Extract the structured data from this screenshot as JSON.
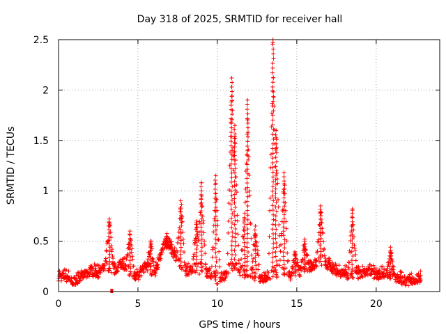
{
  "chart_data": {
    "type": "scatter",
    "title": "Day 318 of 2025, SRMTID for receiver hall",
    "xlabel": "GPS time / hours",
    "ylabel": "SRMTID / TECUs",
    "xlim": [
      0,
      24
    ],
    "ylim": [
      0,
      2.5
    ],
    "x_ticks": [
      0,
      5,
      10,
      15,
      20
    ],
    "x_tick_labels": [
      "0",
      "5",
      "10",
      "15",
      "20"
    ],
    "y_ticks": [
      0,
      0.5,
      1,
      1.5,
      2,
      2.5
    ],
    "y_tick_labels": [
      "0",
      "0.5",
      "1",
      "1.5",
      "2",
      "2.5"
    ],
    "grid": true,
    "marker": "+",
    "color": "#ff0000",
    "series": [
      {
        "name": "SRMTID",
        "baseline": [
          [
            0,
            0.15
          ],
          [
            0.5,
            0.14
          ],
          [
            1,
            0.1
          ],
          [
            1.5,
            0.14
          ],
          [
            2,
            0.2
          ],
          [
            2.5,
            0.18
          ],
          [
            3,
            0.25
          ],
          [
            3.5,
            0.2
          ],
          [
            4,
            0.28
          ],
          [
            4.5,
            0.16
          ],
          [
            5,
            0.15
          ],
          [
            5.5,
            0.25
          ],
          [
            6,
            0.14
          ],
          [
            6.5,
            0.4
          ],
          [
            7,
            0.45
          ],
          [
            7.5,
            0.3
          ],
          [
            8,
            0.2
          ],
          [
            8.5,
            0.22
          ],
          [
            9,
            0.2
          ],
          [
            9.5,
            0.18
          ],
          [
            10,
            0.1
          ],
          [
            10.5,
            0.16
          ],
          [
            11,
            0.25
          ],
          [
            11.5,
            0.18
          ],
          [
            12,
            0.16
          ],
          [
            12.5,
            0.14
          ],
          [
            13,
            0.12
          ],
          [
            13.5,
            0.15
          ],
          [
            14,
            0.2
          ],
          [
            14.5,
            0.16
          ],
          [
            15,
            0.16
          ],
          [
            15.5,
            0.22
          ],
          [
            16,
            0.25
          ],
          [
            16.5,
            0.3
          ],
          [
            17,
            0.25
          ],
          [
            17.5,
            0.2
          ],
          [
            18,
            0.18
          ],
          [
            18.5,
            0.14
          ],
          [
            19,
            0.18
          ],
          [
            19.5,
            0.2
          ],
          [
            20,
            0.16
          ],
          [
            20.5,
            0.18
          ],
          [
            21,
            0.15
          ],
          [
            21.5,
            0.12
          ],
          [
            22,
            0.1
          ],
          [
            22.7,
            0.13
          ]
        ],
        "spikes": [
          [
            3.2,
            0.72
          ],
          [
            4.5,
            0.6
          ],
          [
            5.8,
            0.5
          ],
          [
            6.8,
            0.55
          ],
          [
            7.7,
            0.9
          ],
          [
            8.7,
            0.7
          ],
          [
            9.0,
            1.08
          ],
          [
            9.9,
            1.15
          ],
          [
            10.9,
            2.12
          ],
          [
            11.1,
            1.65
          ],
          [
            11.7,
            0.72
          ],
          [
            11.9,
            1.9
          ],
          [
            12.4,
            0.65
          ],
          [
            13.5,
            2.5
          ],
          [
            13.7,
            1.6
          ],
          [
            14.2,
            1.18
          ],
          [
            14.9,
            0.38
          ],
          [
            15.5,
            0.5
          ],
          [
            16.5,
            0.85
          ],
          [
            18.5,
            0.82
          ],
          [
            20.9,
            0.44
          ]
        ],
        "outliers": [
          [
            3.35,
            0.0
          ]
        ],
        "x_range": [
          0,
          22.8
        ]
      }
    ]
  }
}
